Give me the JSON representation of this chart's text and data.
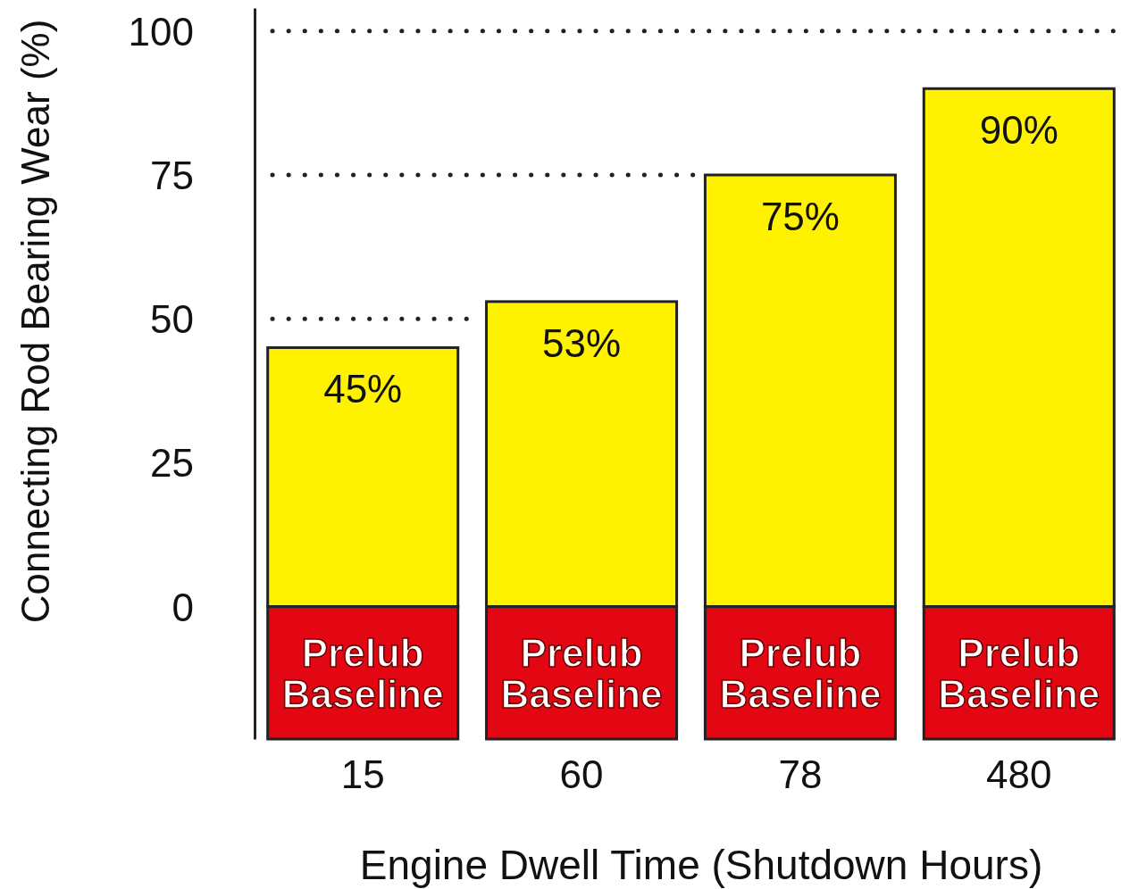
{
  "chart_data": {
    "type": "bar",
    "stacked": true,
    "categories": [
      "15",
      "60",
      "78",
      "480"
    ],
    "series": [
      {
        "color": "#fff200",
        "values": [
          45,
          53,
          75,
          90
        ],
        "value_labels": [
          "45%",
          "53%",
          "75%",
          "90%"
        ]
      },
      {
        "name": "Prelub Baseline",
        "color": "#e30613",
        "values": [
          -23,
          -23,
          -23,
          -23
        ]
      }
    ],
    "xlabel": "Engine Dwell Time (Shutdown Hours)",
    "ylabel": "Connecting Rod Bearing Wear (%)",
    "ylim": [
      -23,
      104
    ],
    "yticks": [
      0,
      25,
      50,
      75,
      100
    ],
    "ref_lines": [
      {
        "axis": "y",
        "value": 50,
        "line_style": "dotted"
      },
      {
        "axis": "y",
        "value": 75,
        "line_style": "dotted"
      },
      {
        "axis": "y",
        "value": 100,
        "line_style": "dotted"
      }
    ]
  }
}
